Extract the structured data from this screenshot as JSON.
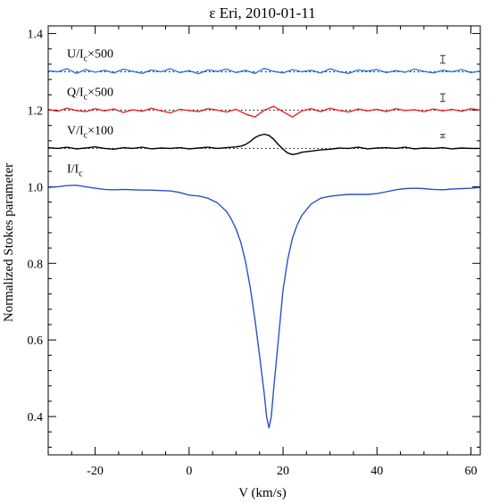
{
  "chart_data": {
    "type": "line",
    "title": "ε Eri, 2010-01-11",
    "xlabel": "V (km/s)",
    "ylabel": "Normalized Stokes parameter",
    "xlim": [
      -30,
      62
    ],
    "ylim": [
      0.3,
      1.42
    ],
    "xticks": [
      -20,
      0,
      20,
      40,
      60
    ],
    "xtick_labels": [
      "-20",
      "0",
      "20",
      "40",
      "60"
    ],
    "yticks": [
      0.4,
      0.6,
      0.8,
      1.0,
      1.2,
      1.4
    ],
    "ytick_labels": [
      "0.4",
      "0.6",
      "0.8",
      "1.0",
      "1.2",
      "1.4"
    ],
    "grid": false,
    "series": [
      {
        "label_main": "U/I",
        "label_sub": "c",
        "label_suffix": "×500",
        "color": "#2878d8",
        "offset": 1.3,
        "errorbar": {
          "x": 54,
          "half_height": 0.01
        },
        "x": [
          -30,
          -28,
          -26,
          -24,
          -22,
          -20,
          -18,
          -16,
          -14,
          -12,
          -10,
          -8,
          -6,
          -4,
          -2,
          0,
          2,
          4,
          6,
          8,
          10,
          12,
          14,
          16,
          18,
          20,
          22,
          24,
          26,
          28,
          30,
          32,
          34,
          36,
          38,
          40,
          42,
          44,
          46,
          48,
          50,
          52,
          54,
          56,
          58,
          60,
          62
        ],
        "y": [
          1.303,
          1.3,
          1.308,
          1.296,
          1.306,
          1.299,
          1.304,
          1.297,
          1.307,
          1.301,
          1.296,
          1.305,
          1.3,
          1.308,
          1.298,
          1.303,
          1.295,
          1.305,
          1.301,
          1.307,
          1.298,
          1.304,
          1.296,
          1.309,
          1.301,
          1.297,
          1.306,
          1.3,
          1.304,
          1.297,
          1.308,
          1.3,
          1.296,
          1.305,
          1.302,
          1.306,
          1.298,
          1.303,
          1.299,
          1.307,
          1.301,
          1.297,
          1.304,
          1.3,
          1.306,
          1.298,
          1.302
        ]
      },
      {
        "label_main": "Q/I",
        "label_sub": "c",
        "label_suffix": "×500",
        "color": "#e8242c",
        "offset": 1.2,
        "errorbar": {
          "x": 54,
          "half_height": 0.01
        },
        "x": [
          -30,
          -28,
          -26,
          -24,
          -22,
          -20,
          -18,
          -16,
          -14,
          -12,
          -10,
          -8,
          -6,
          -4,
          -2,
          0,
          2,
          4,
          6,
          8,
          10,
          12,
          14,
          16,
          18,
          20,
          22,
          24,
          26,
          28,
          30,
          32,
          34,
          36,
          38,
          40,
          42,
          44,
          46,
          48,
          50,
          52,
          54,
          56,
          58,
          60,
          62
        ],
        "y": [
          1.202,
          1.197,
          1.205,
          1.199,
          1.196,
          1.204,
          1.198,
          1.203,
          1.194,
          1.201,
          1.197,
          1.205,
          1.198,
          1.193,
          1.202,
          1.199,
          1.196,
          1.204,
          1.2,
          1.195,
          1.202,
          1.19,
          1.182,
          1.2,
          1.21,
          1.196,
          1.182,
          1.198,
          1.204,
          1.196,
          1.205,
          1.199,
          1.195,
          1.203,
          1.198,
          1.202,
          1.196,
          1.204,
          1.199,
          1.201,
          1.196,
          1.203,
          1.198,
          1.202,
          1.197,
          1.204,
          1.2
        ]
      },
      {
        "label_main": "V/I",
        "label_sub": "c",
        "label_suffix": "×100",
        "color": "#000000",
        "offset": 1.1,
        "errorbar": {
          "x": 54,
          "half_height": 0.004
        },
        "x": [
          -30,
          -28,
          -26,
          -24,
          -22,
          -20,
          -18,
          -16,
          -14,
          -12,
          -10,
          -8,
          -6,
          -4,
          -2,
          0,
          2,
          4,
          6,
          8,
          10,
          11,
          12,
          13,
          14,
          15,
          16,
          17,
          18,
          19,
          20,
          21,
          22,
          23,
          24,
          26,
          28,
          30,
          32,
          34,
          36,
          38,
          40,
          42,
          44,
          46,
          48,
          50,
          52,
          54,
          56,
          58,
          60,
          62
        ],
        "y": [
          1.102,
          1.1,
          1.103,
          1.099,
          1.101,
          1.104,
          1.1,
          1.098,
          1.102,
          1.1,
          1.103,
          1.099,
          1.101,
          1.1,
          1.102,
          1.099,
          1.101,
          1.103,
          1.1,
          1.102,
          1.104,
          1.106,
          1.11,
          1.118,
          1.128,
          1.134,
          1.137,
          1.134,
          1.124,
          1.11,
          1.098,
          1.088,
          1.084,
          1.086,
          1.09,
          1.093,
          1.096,
          1.098,
          1.101,
          1.1,
          1.103,
          1.099,
          1.101,
          1.102,
          1.1,
          1.103,
          1.099,
          1.101,
          1.1,
          1.102,
          1.099,
          1.101,
          1.1,
          1.1
        ]
      },
      {
        "label_main": "I/I",
        "label_sub": "c",
        "label_suffix": "",
        "color": "#2a52c8",
        "offset": 1.0,
        "x": [
          -30,
          -28,
          -26,
          -24,
          -22,
          -20,
          -18,
          -16,
          -14,
          -12,
          -10,
          -8,
          -6,
          -4,
          -2,
          0,
          2,
          4,
          6,
          8,
          9,
          10,
          11,
          12,
          13,
          14,
          15,
          16,
          16.5,
          17,
          17.5,
          18,
          19,
          20,
          21,
          22,
          23,
          24,
          26,
          28,
          30,
          32,
          34,
          36,
          38,
          40,
          42,
          44,
          46,
          48,
          50,
          52,
          54,
          56,
          58,
          60,
          62
        ],
        "y": [
          0.998,
          1.0,
          1.003,
          1.004,
          1.0,
          0.996,
          0.993,
          0.992,
          0.993,
          0.992,
          0.991,
          0.991,
          0.99,
          0.989,
          0.985,
          0.978,
          0.976,
          0.97,
          0.958,
          0.935,
          0.915,
          0.89,
          0.855,
          0.805,
          0.738,
          0.655,
          0.56,
          0.46,
          0.4,
          0.37,
          0.4,
          0.47,
          0.6,
          0.73,
          0.81,
          0.866,
          0.9,
          0.925,
          0.955,
          0.97,
          0.975,
          0.978,
          0.98,
          0.98,
          0.98,
          0.982,
          0.987,
          0.992,
          0.995,
          0.996,
          0.995,
          0.993,
          0.992,
          0.994,
          0.995,
          0.996,
          0.998
        ]
      }
    ]
  }
}
